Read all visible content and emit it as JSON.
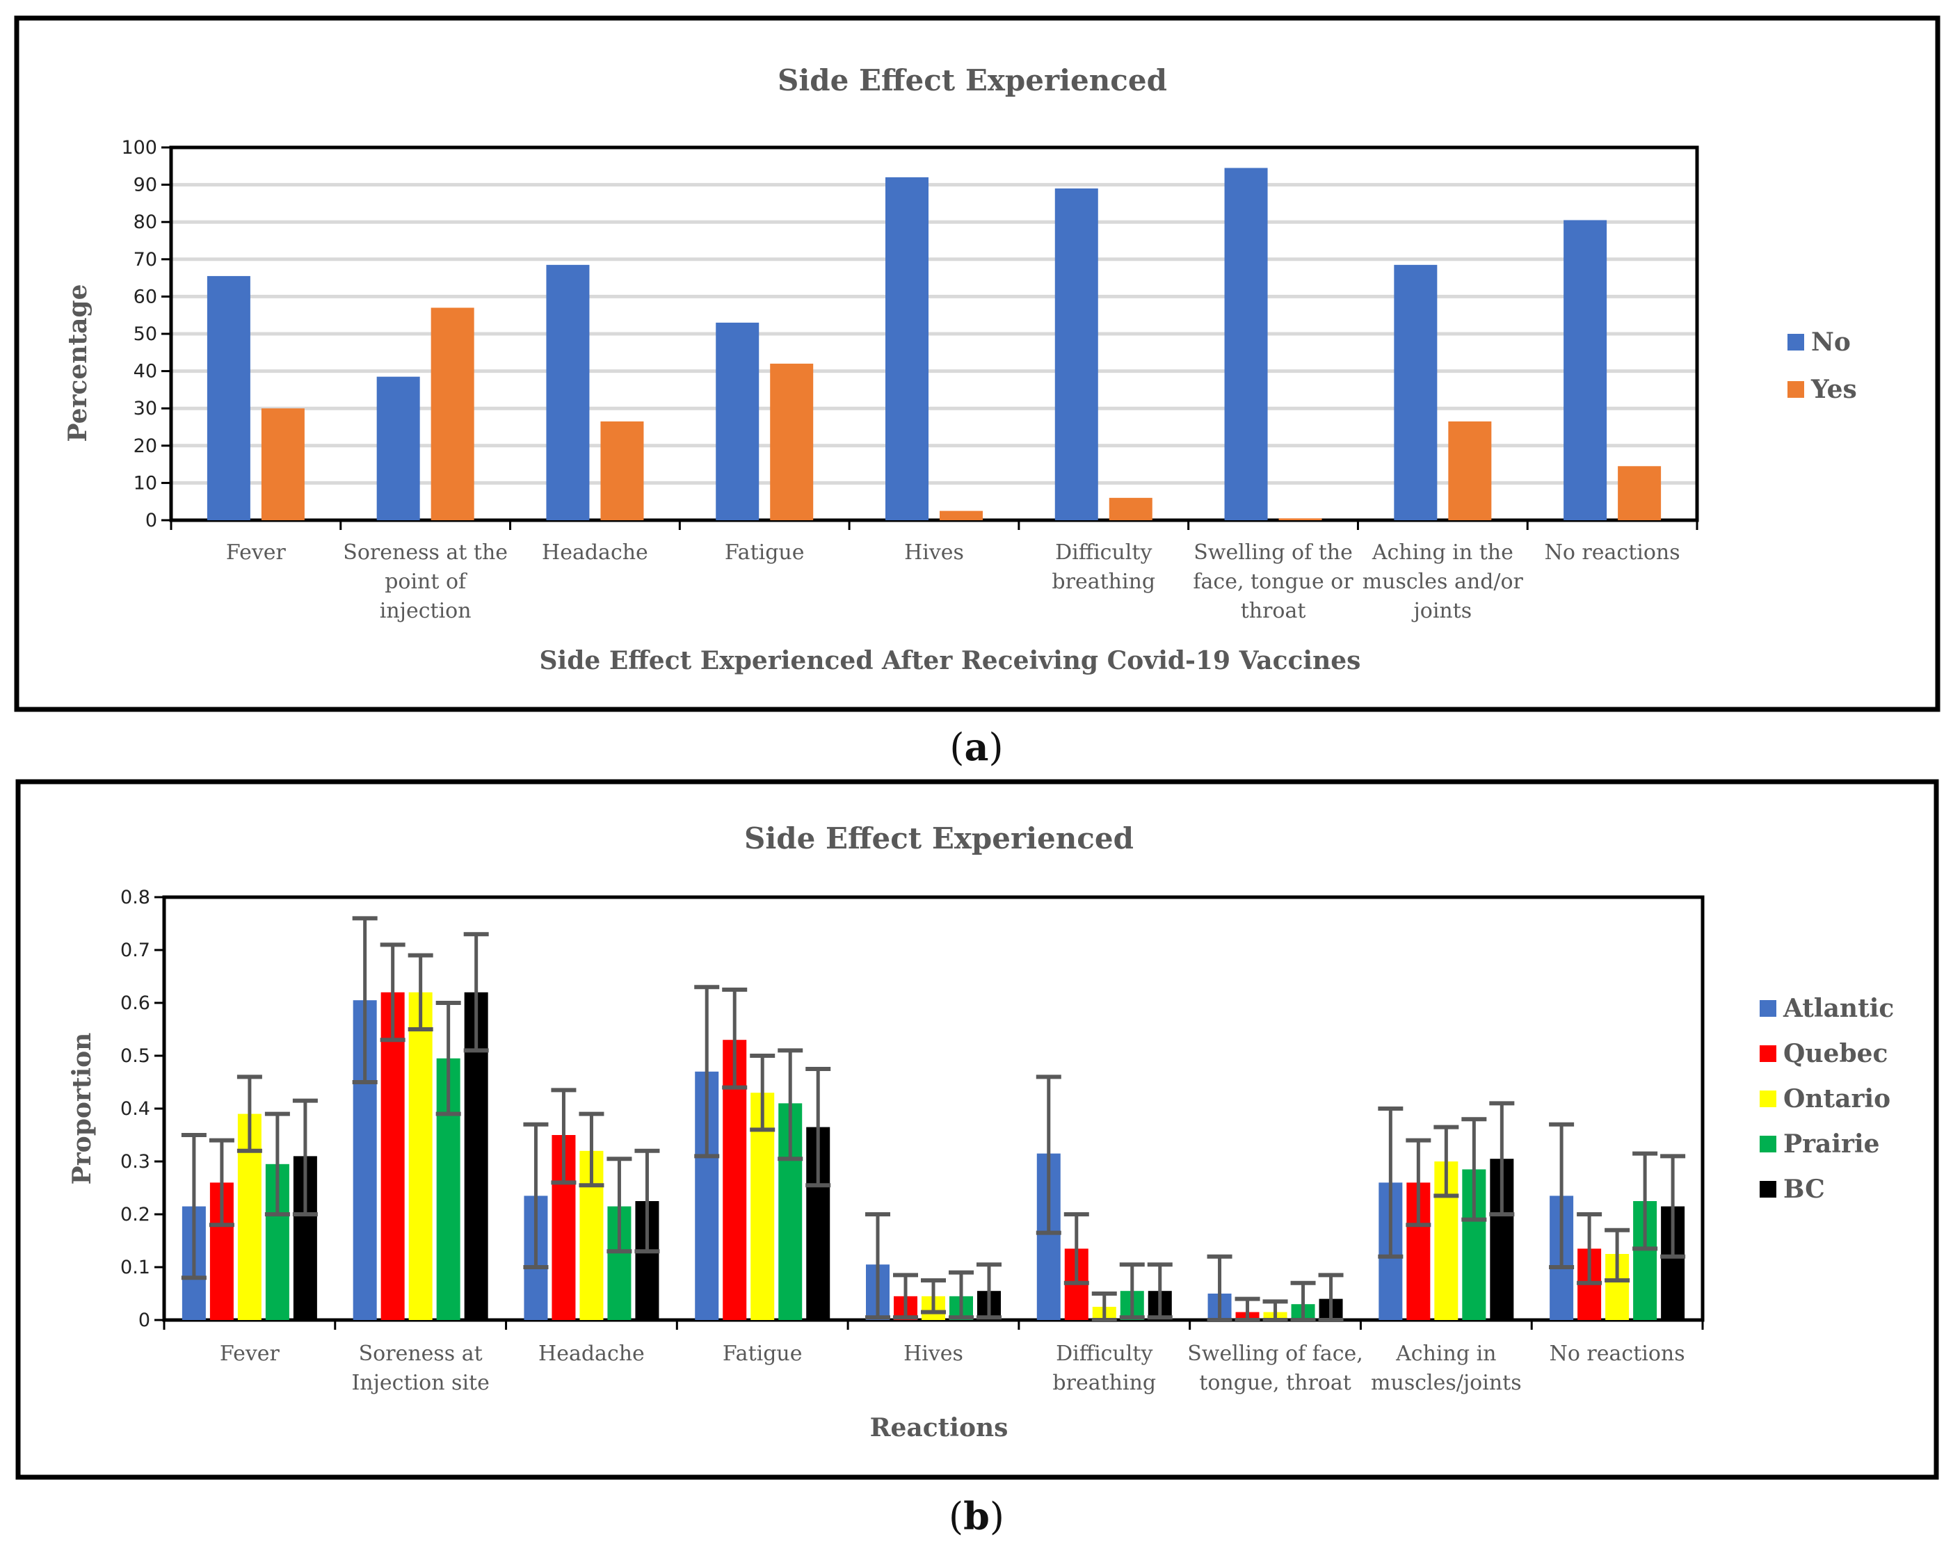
{
  "chart_data": [
    {
      "type": "bar",
      "title": "Side Effect Experienced",
      "xlabel": "Side Effect Experienced After Receiving Covid-19 Vaccines",
      "ylabel": "Percentage",
      "ylim": [
        0,
        100
      ],
      "yticks": [
        "0",
        "10",
        "20",
        "30",
        "40",
        "50",
        "60",
        "70",
        "80",
        "90",
        "100"
      ],
      "grid": true,
      "legend": "right",
      "categories": [
        [
          "Fever"
        ],
        [
          "Soreness at the",
          "point of",
          "injection"
        ],
        [
          "Headache"
        ],
        [
          "Fatigue"
        ],
        [
          "Hives"
        ],
        [
          "Difficulty",
          "breathing"
        ],
        [
          "Swelling of the",
          "face, tongue or",
          "throat"
        ],
        [
          "Aching in the",
          "muscles and/or",
          "joints"
        ],
        [
          "No reactions"
        ]
      ],
      "series": [
        {
          "name": "No",
          "color": "#4472C4",
          "values": [
            65.5,
            38.5,
            68.5,
            53,
            92,
            89,
            94.5,
            68.5,
            80.5
          ]
        },
        {
          "name": "Yes",
          "color": "#ED7D31",
          "values": [
            30,
            57,
            26.5,
            42,
            2.5,
            6,
            0.5,
            26.5,
            14.5
          ]
        }
      ]
    },
    {
      "type": "bar",
      "title": "Side Effect Experienced",
      "xlabel": "Reactions",
      "ylabel": "Proportion",
      "ylim": [
        0,
        0.8
      ],
      "yticks": [
        "0",
        "0.1",
        "0.2",
        "0.3",
        "0.4",
        "0.5",
        "0.6",
        "0.7",
        "0.8"
      ],
      "grid": false,
      "legend": "right",
      "categories": [
        [
          "Fever"
        ],
        [
          "Soreness at",
          "Injection site"
        ],
        [
          "Headache"
        ],
        [
          "Fatigue"
        ],
        [
          "Hives"
        ],
        [
          "Difficulty",
          "breathing"
        ],
        [
          "Swelling of face,",
          "tongue, throat"
        ],
        [
          "Aching in",
          "muscles/joints"
        ],
        [
          "No reactions"
        ]
      ],
      "series": [
        {
          "name": "Atlantic",
          "color": "#4472C4",
          "values": [
            0.215,
            0.605,
            0.235,
            0.47,
            0.105,
            0.315,
            0.05,
            0.26,
            0.235
          ],
          "err_low": [
            0.08,
            0.45,
            0.1,
            0.31,
            0.005,
            0.165,
            0.0,
            0.12,
            0.1
          ],
          "err_high": [
            0.35,
            0.76,
            0.37,
            0.63,
            0.2,
            0.46,
            0.12,
            0.4,
            0.37
          ]
        },
        {
          "name": "Quebec",
          "color": "#FF0000",
          "values": [
            0.26,
            0.62,
            0.35,
            0.53,
            0.045,
            0.135,
            0.015,
            0.26,
            0.135
          ],
          "err_low": [
            0.18,
            0.53,
            0.26,
            0.44,
            0.005,
            0.07,
            0.0,
            0.18,
            0.07
          ],
          "err_high": [
            0.34,
            0.71,
            0.435,
            0.625,
            0.085,
            0.2,
            0.04,
            0.34,
            0.2
          ]
        },
        {
          "name": "Ontario",
          "color": "#FFFF00",
          "values": [
            0.39,
            0.62,
            0.32,
            0.43,
            0.045,
            0.025,
            0.015,
            0.3,
            0.125
          ],
          "err_low": [
            0.32,
            0.55,
            0.255,
            0.36,
            0.015,
            0.0,
            0.0,
            0.235,
            0.075
          ],
          "err_high": [
            0.46,
            0.69,
            0.39,
            0.5,
            0.075,
            0.05,
            0.035,
            0.365,
            0.17
          ]
        },
        {
          "name": "Prairie",
          "color": "#00B050",
          "values": [
            0.295,
            0.495,
            0.215,
            0.41,
            0.045,
            0.055,
            0.03,
            0.285,
            0.225
          ],
          "err_low": [
            0.2,
            0.39,
            0.13,
            0.305,
            0.005,
            0.005,
            0.0,
            0.19,
            0.135
          ],
          "err_high": [
            0.39,
            0.6,
            0.305,
            0.51,
            0.09,
            0.105,
            0.07,
            0.38,
            0.315
          ]
        },
        {
          "name": "BC",
          "color": "#000000",
          "values": [
            0.31,
            0.62,
            0.225,
            0.365,
            0.055,
            0.055,
            0.04,
            0.305,
            0.215
          ],
          "err_low": [
            0.2,
            0.51,
            0.13,
            0.255,
            0.005,
            0.005,
            0.0,
            0.2,
            0.12
          ],
          "err_high": [
            0.415,
            0.73,
            0.32,
            0.475,
            0.105,
            0.105,
            0.085,
            0.41,
            0.31
          ]
        }
      ]
    }
  ],
  "panel_labels": [
    "a",
    "b"
  ]
}
